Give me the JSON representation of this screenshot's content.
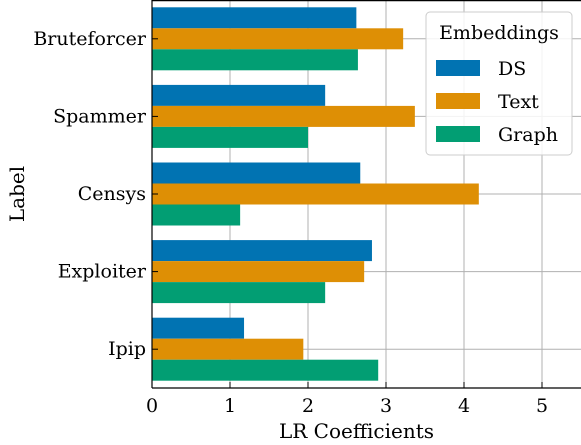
{
  "chart_data": {
    "type": "bar",
    "orientation": "horizontal",
    "categories": [
      "Bruteforcer",
      "Spammer",
      "Censys",
      "Exploiter",
      "Ipip"
    ],
    "series": [
      {
        "name": "DS",
        "color": "#0173b2",
        "values": [
          2.62,
          2.22,
          2.67,
          2.82,
          1.18
        ]
      },
      {
        "name": "Text",
        "color": "#de8f05",
        "values": [
          3.22,
          3.37,
          4.19,
          2.72,
          1.94
        ]
      },
      {
        "name": "Graph",
        "color": "#029e73",
        "values": [
          2.64,
          2.0,
          1.13,
          2.22,
          2.9
        ]
      }
    ],
    "xlabel": "LR Coefficients",
    "ylabel": "Label",
    "xlim": [
      0,
      5.5
    ],
    "xticks": [
      0,
      1,
      2,
      3,
      4,
      5
    ],
    "grid": true,
    "legend": {
      "title": "Embeddings",
      "placement": "top-right"
    }
  }
}
